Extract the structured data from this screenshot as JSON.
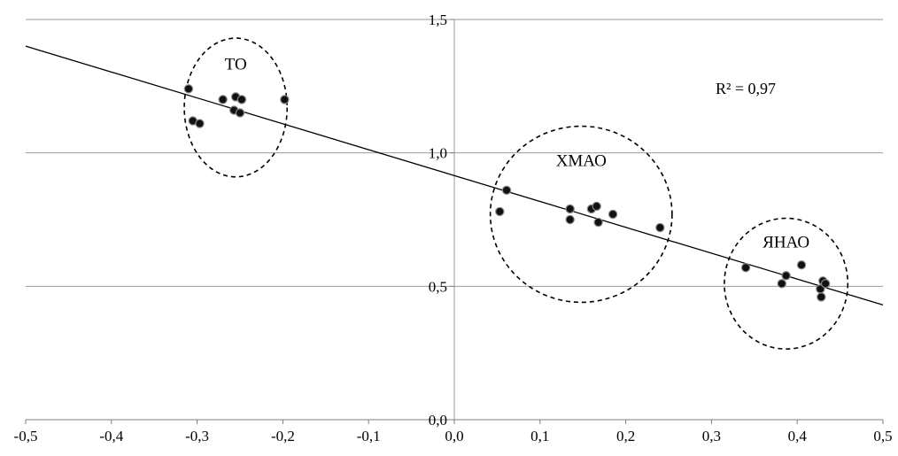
{
  "chart_data": {
    "type": "scatter",
    "title": "",
    "xlabel": "",
    "ylabel": "",
    "xlim": [
      -0.5,
      0.5
    ],
    "ylim": [
      0,
      1.5
    ],
    "x_ticks": [
      {
        "value": -0.5,
        "label": "-0,5"
      },
      {
        "value": -0.4,
        "label": "-0,4"
      },
      {
        "value": -0.3,
        "label": "-0,3"
      },
      {
        "value": -0.2,
        "label": "-0,2"
      },
      {
        "value": -0.1,
        "label": "-0,1"
      },
      {
        "value": 0.0,
        "label": "0,0"
      },
      {
        "value": 0.1,
        "label": "0,1"
      },
      {
        "value": 0.2,
        "label": "0,2"
      },
      {
        "value": 0.3,
        "label": "0,3"
      },
      {
        "value": 0.4,
        "label": "0,4"
      },
      {
        "value": 0.5,
        "label": "0,5"
      }
    ],
    "y_ticks": [
      {
        "value": 0.0,
        "label": "0,0"
      },
      {
        "value": 0.5,
        "label": "0,5"
      },
      {
        "value": 1.0,
        "label": "1,0"
      },
      {
        "value": 1.5,
        "label": "1,5"
      }
    ],
    "grid": "horizontal",
    "trendline": {
      "x": [
        -0.5,
        0.5
      ],
      "y": [
        1.4,
        0.43
      ]
    },
    "r_squared_label": "R² = 0,97",
    "points": [
      {
        "x": -0.31,
        "y": 1.24
      },
      {
        "x": -0.305,
        "y": 1.12
      },
      {
        "x": -0.297,
        "y": 1.11
      },
      {
        "x": -0.27,
        "y": 1.2
      },
      {
        "x": -0.255,
        "y": 1.21
      },
      {
        "x": -0.248,
        "y": 1.2
      },
      {
        "x": -0.257,
        "y": 1.16
      },
      {
        "x": -0.25,
        "y": 1.15
      },
      {
        "x": -0.198,
        "y": 1.2
      },
      {
        "x": 0.053,
        "y": 0.78
      },
      {
        "x": 0.061,
        "y": 0.86
      },
      {
        "x": 0.135,
        "y": 0.79
      },
      {
        "x": 0.135,
        "y": 0.75
      },
      {
        "x": 0.16,
        "y": 0.79
      },
      {
        "x": 0.166,
        "y": 0.8
      },
      {
        "x": 0.168,
        "y": 0.74
      },
      {
        "x": 0.185,
        "y": 0.77
      },
      {
        "x": 0.24,
        "y": 0.72
      },
      {
        "x": 0.34,
        "y": 0.57
      },
      {
        "x": 0.382,
        "y": 0.51
      },
      {
        "x": 0.387,
        "y": 0.54
      },
      {
        "x": 0.405,
        "y": 0.58
      },
      {
        "x": 0.427,
        "y": 0.49
      },
      {
        "x": 0.428,
        "y": 0.46
      },
      {
        "x": 0.43,
        "y": 0.52
      },
      {
        "x": 0.433,
        "y": 0.51
      }
    ],
    "clusters": [
      {
        "label": "ТО",
        "center": [
          -0.255,
          1.17
        ],
        "rx": 0.06,
        "ry": 0.26
      },
      {
        "label": "ХМАО",
        "center": [
          0.148,
          0.77
        ],
        "rx": 0.106,
        "ry": 0.33
      },
      {
        "label": "ЯНАО",
        "center": [
          0.387,
          0.51
        ],
        "rx": 0.072,
        "ry": 0.245
      }
    ]
  }
}
